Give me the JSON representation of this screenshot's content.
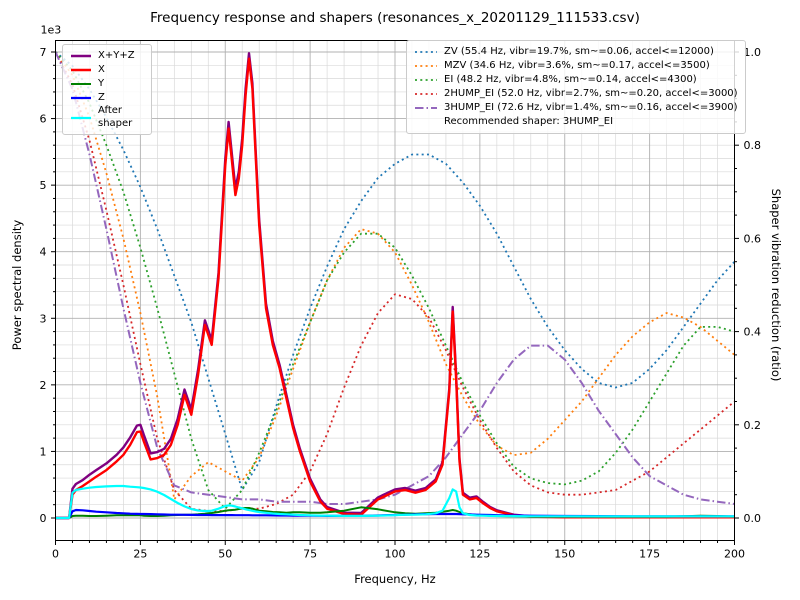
{
  "chart_data": {
    "type": "line",
    "title": "Frequency response and shapers (resonances_x_20201129_111533.csv)",
    "xlabel": "Frequency, Hz",
    "ylabel_left": "Power spectral density",
    "ylabel_right": "Shaper vibration reduction (ratio)",
    "y_left_multiplier": "1e3",
    "legend_note": "Recommended shaper: 3HUMP_EI",
    "grid": "major+minor",
    "legend_left_position": "upper left",
    "legend_right_position": "upper right",
    "xlim": [
      0,
      200
    ],
    "y_left_max": 7000,
    "y_right_max": 1.0,
    "x_ticks": [
      0,
      25,
      50,
      75,
      100,
      125,
      150,
      175,
      200
    ],
    "x_minor_step": 5,
    "y_left_ticks": [
      0,
      1,
      2,
      3,
      4,
      5,
      6,
      7
    ],
    "y_left_minor_step": 200,
    "y_right_ticks": [
      "0.0",
      "0.2",
      "0.4",
      "0.6",
      "0.8",
      "1.0"
    ],
    "y_right_minor_step": 0.05,
    "colors": {
      "spine": "#000000",
      "grid_major": "#b0b0b0",
      "grid_minor": "#d9d9d9",
      "text": "#000000"
    },
    "psd_x": [
      0,
      4,
      5,
      6,
      8,
      10,
      12,
      15,
      18,
      20,
      22,
      24,
      25,
      26,
      28,
      30,
      32,
      34,
      36,
      38,
      40,
      42,
      44,
      45,
      46,
      48,
      50,
      51,
      52,
      53,
      54,
      55,
      56,
      57,
      58,
      59,
      60,
      62,
      64,
      66,
      68,
      70,
      72,
      75,
      78,
      80,
      85,
      90,
      95,
      100,
      103,
      106,
      109,
      112,
      114,
      116,
      117,
      118,
      119,
      120,
      122,
      124,
      126,
      128,
      130,
      135,
      140,
      150,
      160,
      170,
      180,
      190,
      195,
      200
    ],
    "psd_series": [
      {
        "name": "X+Y+Z",
        "color": "#800080",
        "style": "solid",
        "width": 2.4,
        "values": [
          0,
          0,
          440,
          510,
          570,
          650,
          720,
          820,
          950,
          1060,
          1210,
          1390,
          1400,
          1250,
          970,
          990,
          1040,
          1190,
          1490,
          1930,
          1630,
          2230,
          2970,
          2820,
          2670,
          3680,
          5400,
          5950,
          5450,
          4950,
          5200,
          5700,
          6450,
          6980,
          6530,
          5480,
          4480,
          3220,
          2660,
          2300,
          1850,
          1400,
          1040,
          590,
          280,
          165,
          80,
          75,
          310,
          430,
          450,
          410,
          450,
          580,
          840,
          1950,
          3170,
          2160,
          890,
          380,
          305,
          325,
          240,
          165,
          115,
          50,
          25,
          15,
          15,
          15,
          15,
          15,
          15,
          15
        ]
      },
      {
        "name": "X",
        "color": "#ff0000",
        "style": "solid",
        "width": 2.4,
        "values": [
          0,
          0,
          350,
          420,
          480,
          550,
          620,
          720,
          850,
          950,
          1100,
          1290,
          1300,
          1150,
          880,
          900,
          950,
          1100,
          1400,
          1850,
          1550,
          2150,
          2900,
          2750,
          2600,
          3600,
          5300,
          5850,
          5350,
          4850,
          5100,
          5600,
          6350,
          6900,
          6450,
          5400,
          4400,
          3150,
          2600,
          2250,
          1800,
          1350,
          1000,
          550,
          250,
          140,
          60,
          50,
          280,
          400,
          420,
          380,
          420,
          550,
          800,
          1900,
          3100,
          2100,
          850,
          350,
          280,
          300,
          220,
          150,
          100,
          40,
          20,
          10,
          10,
          10,
          10,
          10,
          10,
          10
        ]
      },
      {
        "name": "Y",
        "color": "#008000",
        "style": "solid",
        "width": 2.0,
        "values": [
          0,
          0,
          30,
          35,
          35,
          30,
          30,
          35,
          40,
          40,
          40,
          40,
          40,
          35,
          30,
          30,
          35,
          40,
          45,
          50,
          50,
          55,
          65,
          70,
          75,
          90,
          110,
          115,
          120,
          125,
          135,
          145,
          150,
          150,
          140,
          125,
          110,
          100,
          90,
          85,
          80,
          85,
          85,
          80,
          80,
          85,
          110,
          160,
          130,
          85,
          70,
          65,
          70,
          80,
          95,
          110,
          120,
          110,
          90,
          70,
          55,
          45,
          40,
          35,
          30,
          25,
          20,
          20,
          20,
          20,
          20,
          35,
          30,
          20
        ]
      },
      {
        "name": "Z",
        "color": "#0000ff",
        "style": "solid",
        "width": 2.2,
        "values": [
          0,
          0,
          100,
          120,
          115,
          105,
          95,
          85,
          75,
          70,
          65,
          62,
          60,
          60,
          58,
          55,
          52,
          50,
          50,
          48,
          46,
          45,
          45,
          45,
          44,
          44,
          43,
          43,
          43,
          42,
          42,
          42,
          42,
          42,
          41,
          41,
          40,
          40,
          39,
          38,
          37,
          36,
          35,
          34,
          33,
          32,
          32,
          33,
          38,
          45,
          50,
          55,
          58,
          60,
          60,
          60,
          60,
          60,
          58,
          56,
          52,
          50,
          48,
          45,
          42,
          38,
          34,
          30,
          28,
          26,
          25,
          25,
          25,
          25
        ]
      },
      {
        "name": "After shaper",
        "color": "#00ffff",
        "style": "solid",
        "width": 2.2,
        "values": [
          0,
          0,
          380,
          420,
          440,
          455,
          465,
          475,
          480,
          480,
          470,
          462,
          458,
          450,
          430,
          395,
          345,
          285,
          225,
          175,
          135,
          112,
          105,
          105,
          110,
          140,
          180,
          190,
          185,
          172,
          158,
          145,
          130,
          118,
          108,
          98,
          90,
          78,
          68,
          60,
          55,
          50,
          45,
          40,
          36,
          34,
          32,
          32,
          35,
          42,
          48,
          50,
          55,
          70,
          110,
          300,
          430,
          400,
          160,
          70,
          45,
          38,
          34,
          32,
          30,
          28,
          26,
          25,
          24,
          24,
          24,
          24,
          24,
          24
        ]
      }
    ],
    "shaper_x": [
      0,
      5,
      10,
      15,
      20,
      25,
      30,
      35,
      40,
      45,
      50,
      55,
      60,
      65,
      70,
      75,
      80,
      85,
      90,
      95,
      100,
      105,
      110,
      115,
      120,
      125,
      130,
      135,
      140,
      145,
      150,
      155,
      160,
      165,
      170,
      175,
      180,
      185,
      190,
      195,
      200
    ],
    "shaper_series": [
      {
        "name": "ZV",
        "label": "ZV (55.4 Hz, vibr=19.7%, sm~=0.06, accel<=12000)",
        "freq": 55.4,
        "vibr_pct": 19.7,
        "smoothing": 0.06,
        "max_accel": 12000,
        "color": "#1f77b4",
        "style": "dotted",
        "width": 1.8,
        "values": [
          1.0,
          0.97,
          0.92,
          0.86,
          0.79,
          0.71,
          0.62,
          0.52,
          0.42,
          0.3,
          0.18,
          0.06,
          0.12,
          0.24,
          0.35,
          0.45,
          0.54,
          0.62,
          0.68,
          0.73,
          0.76,
          0.78,
          0.78,
          0.76,
          0.72,
          0.67,
          0.61,
          0.54,
          0.47,
          0.41,
          0.36,
          0.32,
          0.29,
          0.28,
          0.29,
          0.32,
          0.36,
          0.41,
          0.46,
          0.51,
          0.55
        ]
      },
      {
        "name": "MZV",
        "label": "MZV (34.6 Hz, vibr=3.6%, sm~=0.17, accel<=3500)",
        "freq": 34.6,
        "vibr_pct": 3.6,
        "smoothing": 0.17,
        "max_accel": 3500,
        "color": "#ff7f0e",
        "style": "dotted",
        "width": 1.8,
        "values": [
          1.0,
          0.95,
          0.86,
          0.74,
          0.6,
          0.44,
          0.26,
          0.04,
          0.09,
          0.12,
          0.1,
          0.08,
          0.13,
          0.22,
          0.32,
          0.42,
          0.51,
          0.58,
          0.62,
          0.61,
          0.57,
          0.5,
          0.42,
          0.33,
          0.26,
          0.2,
          0.155,
          0.135,
          0.14,
          0.17,
          0.21,
          0.25,
          0.3,
          0.35,
          0.39,
          0.42,
          0.44,
          0.43,
          0.41,
          0.38,
          0.35
        ]
      },
      {
        "name": "EI",
        "label": "EI (48.2 Hz, vibr=4.8%, sm~=0.14, accel<=4300)",
        "freq": 48.2,
        "vibr_pct": 4.8,
        "smoothing": 0.14,
        "max_accel": 4300,
        "color": "#2ca02c",
        "style": "dotted",
        "width": 1.8,
        "values": [
          1.0,
          0.96,
          0.89,
          0.8,
          0.7,
          0.58,
          0.45,
          0.31,
          0.17,
          0.06,
          0.02,
          0.06,
          0.14,
          0.23,
          0.33,
          0.42,
          0.51,
          0.57,
          0.61,
          0.61,
          0.58,
          0.52,
          0.45,
          0.37,
          0.29,
          0.22,
          0.16,
          0.11,
          0.085,
          0.075,
          0.072,
          0.08,
          0.1,
          0.14,
          0.19,
          0.25,
          0.31,
          0.37,
          0.41,
          0.41,
          0.4
        ]
      },
      {
        "name": "2HUMP_EI",
        "label": "2HUMP_EI (52.0 Hz, vibr=2.7%, sm~=0.20, accel<=3000)",
        "freq": 52.0,
        "vibr_pct": 2.7,
        "smoothing": 0.2,
        "max_accel": 3000,
        "color": "#d62728",
        "style": "dotted",
        "width": 1.8,
        "values": [
          1.0,
          0.93,
          0.81,
          0.66,
          0.5,
          0.33,
          0.17,
          0.06,
          0.02,
          0.015,
          0.015,
          0.02,
          0.02,
          0.03,
          0.05,
          0.1,
          0.18,
          0.28,
          0.37,
          0.44,
          0.48,
          0.47,
          0.43,
          0.36,
          0.28,
          0.21,
          0.15,
          0.1,
          0.07,
          0.055,
          0.05,
          0.05,
          0.055,
          0.06,
          0.08,
          0.1,
          0.13,
          0.16,
          0.19,
          0.22,
          0.25
        ]
      },
      {
        "name": "3HUMP_EI",
        "label": "3HUMP_EI (72.6 Hz, vibr=1.4%, sm~=0.16, accel<=3900)",
        "freq": 72.6,
        "vibr_pct": 1.4,
        "smoothing": 0.16,
        "max_accel": 3900,
        "color": "#9467bd",
        "style": "dashdot",
        "width": 2.0,
        "values": [
          1.0,
          0.92,
          0.78,
          0.62,
          0.45,
          0.29,
          0.15,
          0.07,
          0.055,
          0.05,
          0.045,
          0.04,
          0.04,
          0.035,
          0.035,
          0.035,
          0.03,
          0.03,
          0.035,
          0.04,
          0.05,
          0.07,
          0.09,
          0.13,
          0.18,
          0.23,
          0.29,
          0.34,
          0.37,
          0.37,
          0.34,
          0.29,
          0.23,
          0.18,
          0.13,
          0.09,
          0.07,
          0.05,
          0.04,
          0.035,
          0.03
        ]
      }
    ],
    "recommended_shaper": "3HUMP_EI"
  }
}
